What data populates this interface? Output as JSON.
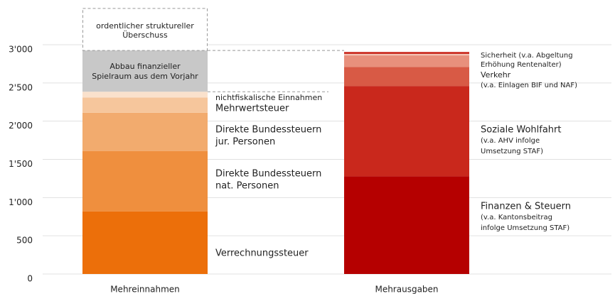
{
  "chart_data": {
    "type": "stacked-bar",
    "categories": [
      "Mehreinnahmen",
      "Mehrausgaben"
    ],
    "ylim": [
      0,
      3000
    ],
    "yticks": [
      0,
      500,
      {
        "value": 1000,
        "label": "1'000"
      },
      {
        "value": 1500,
        "label": "1'500"
      },
      {
        "value": 2000,
        "label": "2'000"
      },
      {
        "value": 2500,
        "label": "2'500"
      },
      {
        "value": 3000,
        "label": "3'000"
      }
    ],
    "grid": true,
    "bars": [
      {
        "segments": [
          {
            "label": [
              "Verrechnungssteuer"
            ],
            "value": 820,
            "color": "#ec6f0a"
          },
          {
            "label": [
              "Direkte Bundessteuern",
              "nat. Personen"
            ],
            "value": 790,
            "color": "#ef8f3e"
          },
          {
            "label": [
              "Direkte Bundessteuern",
              "jur. Personen"
            ],
            "value": 500,
            "color": "#f2ab6e"
          },
          {
            "label": [
              "Mehrwertsteuer"
            ],
            "value": 200,
            "color": "#f6c69c"
          },
          {
            "label": [
              "nichtfiskalische Einnahmen"
            ],
            "value": 75,
            "color": "#fae1cc"
          },
          {
            "label": [
              "Abbau finanzieller",
              "Spielraum aus dem Vorjahr"
            ],
            "value": 540,
            "color": "#c8c8c8"
          },
          {
            "label": [
              "ordentlicher struktureller",
              "Überschuss"
            ],
            "value": 550,
            "color": "#ffffff",
            "border": "dashed"
          }
        ]
      },
      {
        "segments": [
          {
            "label": [
              "Finanzen & Steuern",
              "(v.a. Kantonsbeitrag",
              "infolge Umsetzung STAF)"
            ],
            "value": 1280,
            "color": "#b50000"
          },
          {
            "label": [
              "Soziale Wohlfahrt",
              "(v.a. AHV infolge",
              "Umsetzung STAF)"
            ],
            "value": 1180,
            "color": "#c9281c"
          },
          {
            "label": [
              "Verkehr",
              "(v.a. Einlagen BIF und NAF)"
            ],
            "value": 250,
            "color": "#d85a45"
          },
          {
            "label": [
              "Sicherheit (v.a. Abgeltung",
              "Erhöhung Rentenalter)"
            ],
            "value": 150,
            "color": "#e8907c"
          },
          {
            "label": null,
            "value": 20,
            "color": "#f3c2b4"
          },
          {
            "label": null,
            "value": 25,
            "color": "#c9281c"
          }
        ]
      }
    ]
  }
}
